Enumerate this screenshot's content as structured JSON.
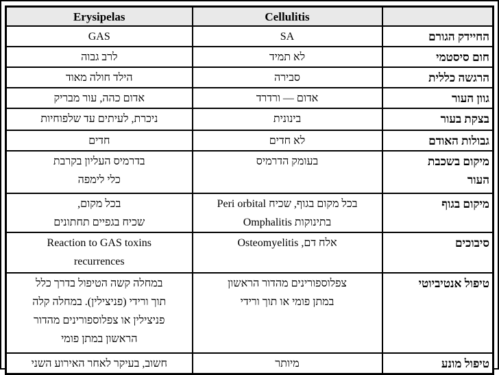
{
  "colors": {
    "page_bg": "#ffffff",
    "border": "#000000",
    "header_bg": "#e9e9e9",
    "text": "#000000"
  },
  "table": {
    "column_headers": {
      "erysipelas": "Erysipelas",
      "cellulitis": "Cellulitis",
      "row_label": ""
    },
    "rows": [
      {
        "label": "החיידק הגורם",
        "erysipelas": "GAS",
        "cellulitis": "SA"
      },
      {
        "label": "חום סיסטמי",
        "erysipelas": "לרב גבוה",
        "cellulitis": "לא תמיד"
      },
      {
        "label": "הרגשה כללית",
        "erysipelas": "הילד חולה מאוד",
        "cellulitis": "סבירה"
      },
      {
        "label": "גוון העור",
        "erysipelas": "אדום כהה, עור מבריק",
        "cellulitis": "אדום — ורדרד"
      },
      {
        "label": "בצקת בעור",
        "erysipelas": "ניכרת, לעיתים עד שלפוחיות",
        "cellulitis": "בינונית"
      },
      {
        "label": "גבולות האודם",
        "erysipelas": "חדים",
        "cellulitis": "לא חדים"
      },
      {
        "label": "מיקום בשכבת\nהעור",
        "erysipelas": "בדרמיס העליון בקרבת\nכלי לימפה",
        "cellulitis": "בעומק הדרמיס"
      },
      {
        "label": "מיקום בגוף",
        "erysipelas": "בכל מקום,\nשכיח בגפיים תחתונים",
        "cellulitis": "בכל מקום בגוף, שכיח Peri orbital\nבתינוקות Omphalitis"
      },
      {
        "label": "סיבוכים",
        "erysipelas": "Reaction to GAS toxins\nrecurrences",
        "cellulitis": "אלח דם, Osteomyelitis"
      },
      {
        "label": "טיפול אנטיביוטי",
        "erysipelas": "במחלה קשה הטיפול בדרך כלל\nתוך ורידי (פניצילין). במחלה קלה\nפניצילין או צפלוספורינים מהדור\nהראשון במתן פומי",
        "cellulitis": "צפלוספורינים מהדור הראשון\nבמתן פומי או תוך ורידי"
      },
      {
        "label": "טיפול מונע",
        "erysipelas": "חשוב, בעיקר לאחר האירוע השני",
        "cellulitis": "מיותר"
      }
    ]
  }
}
